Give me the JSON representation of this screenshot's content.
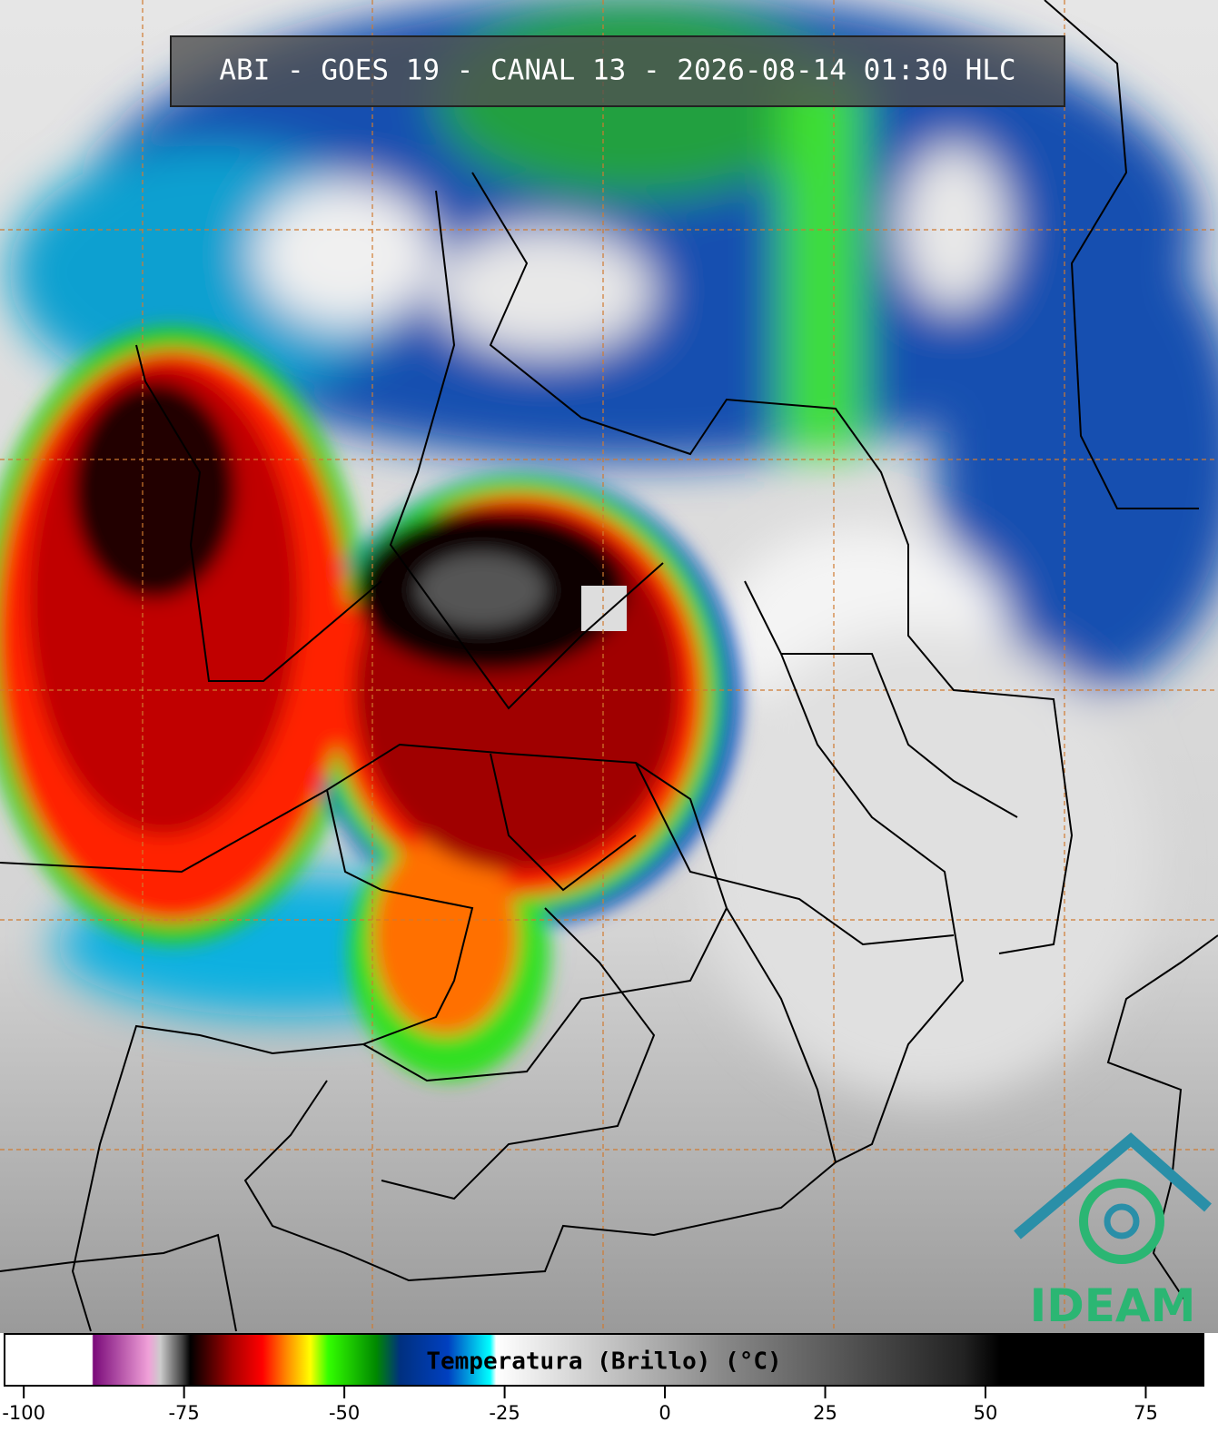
{
  "header": {
    "title": "ABI - GOES 19 - CANAL 13 - 2026-08-14 01:30 HLC"
  },
  "colorbar": {
    "label": "Temperatura (Brillo) (°C)",
    "lim": [
      -103,
      84
    ],
    "ticks": [
      -100,
      -75,
      -50,
      -25,
      0,
      25,
      50,
      75
    ]
  },
  "logo": {
    "text": "IDEAM"
  }
}
